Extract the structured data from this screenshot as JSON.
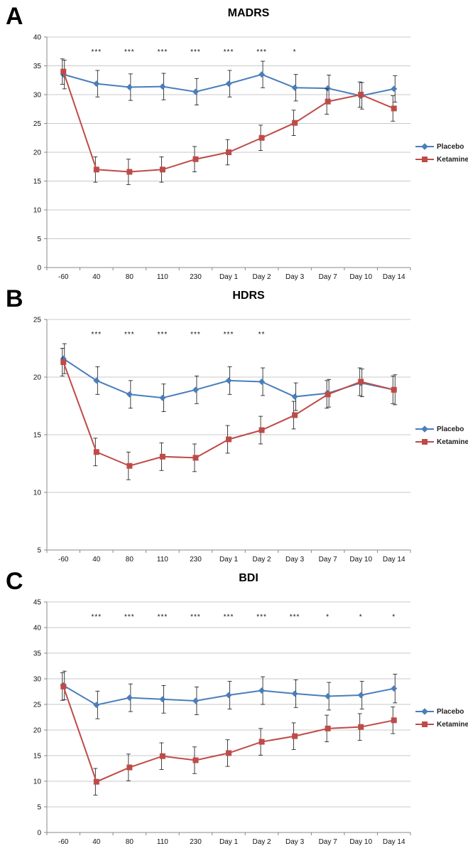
{
  "colors": {
    "placebo": "#4a7ebb",
    "ketamine": "#be4b48",
    "grid": "#c8c8c8",
    "axis": "#888888"
  },
  "chart_data": [
    {
      "panel": "A",
      "type": "line",
      "title": "MADRS",
      "categories": [
        "-60",
        "40",
        "80",
        "110",
        "230",
        "Day 1",
        "Day 2",
        "Day 3",
        "Day 7",
        "Day 10",
        "Day 14"
      ],
      "ylim": [
        0,
        40
      ],
      "yticks": [
        0,
        5,
        10,
        15,
        20,
        25,
        30,
        35,
        40
      ],
      "grid": true,
      "legend": "right",
      "significance": [
        "",
        "***",
        "***",
        "***",
        "***",
        "***",
        "***",
        "*",
        "",
        "",
        ""
      ],
      "series": [
        {
          "name": "Placebo",
          "marker": "diamond",
          "values": [
            33.5,
            31.9,
            31.3,
            31.4,
            30.5,
            31.9,
            33.5,
            31.2,
            31.1,
            29.8,
            31.0
          ],
          "error": [
            2.5,
            2.3,
            2.3,
            2.3,
            2.3,
            2.3,
            2.3,
            2.3,
            2.3,
            2.3,
            2.3
          ]
        },
        {
          "name": "Ketamine",
          "marker": "square",
          "values": [
            34.0,
            17.0,
            16.6,
            17.0,
            18.8,
            20.0,
            22.5,
            25.1,
            28.8,
            30.0,
            27.6
          ],
          "error": [
            2.2,
            2.2,
            2.2,
            2.2,
            2.2,
            2.2,
            2.2,
            2.2,
            2.2,
            2.2,
            2.2
          ]
        }
      ]
    },
    {
      "panel": "B",
      "type": "line",
      "title": "HDRS",
      "categories": [
        "-60",
        "40",
        "80",
        "110",
        "230",
        "Day 1",
        "Day 2",
        "Day 3",
        "Day 7",
        "Day 10",
        "Day 14"
      ],
      "ylim": [
        5,
        25
      ],
      "yticks": [
        5,
        10,
        15,
        20,
        25
      ],
      "grid": true,
      "legend": "right",
      "significance": [
        "",
        "***",
        "***",
        "***",
        "***",
        "***",
        "**",
        "",
        "",
        "",
        ""
      ],
      "series": [
        {
          "name": "Placebo",
          "marker": "diamond",
          "values": [
            21.6,
            19.7,
            18.5,
            18.2,
            18.9,
            19.7,
            19.6,
            18.3,
            18.6,
            19.5,
            18.9
          ],
          "error": [
            1.3,
            1.2,
            1.2,
            1.2,
            1.2,
            1.2,
            1.2,
            1.2,
            1.2,
            1.2,
            1.3
          ]
        },
        {
          "name": "Ketamine",
          "marker": "square",
          "values": [
            21.3,
            13.5,
            12.3,
            13.1,
            13.0,
            14.6,
            15.4,
            16.7,
            18.5,
            19.6,
            18.9
          ],
          "error": [
            1.2,
            1.2,
            1.2,
            1.2,
            1.2,
            1.2,
            1.2,
            1.2,
            1.2,
            1.2,
            1.2
          ]
        }
      ]
    },
    {
      "panel": "C",
      "type": "line",
      "title": "BDI",
      "categories": [
        "-60",
        "40",
        "80",
        "110",
        "230",
        "Day 1",
        "Day 2",
        "Day 3",
        "Day 7",
        "Day 10",
        "Day 14"
      ],
      "ylim": [
        0,
        45
      ],
      "yticks": [
        0,
        5,
        10,
        15,
        20,
        25,
        30,
        35,
        40,
        45
      ],
      "grid": true,
      "legend": "right",
      "significance": [
        "",
        "***",
        "***",
        "***",
        "***",
        "***",
        "***",
        "***",
        "*",
        "*",
        "*"
      ],
      "series": [
        {
          "name": "Placebo",
          "marker": "diamond",
          "values": [
            28.7,
            24.9,
            26.3,
            26.0,
            25.7,
            26.8,
            27.7,
            27.1,
            26.6,
            26.8,
            28.1
          ],
          "error": [
            2.8,
            2.7,
            2.7,
            2.7,
            2.7,
            2.7,
            2.7,
            2.7,
            2.7,
            2.7,
            2.8
          ]
        },
        {
          "name": "Ketamine",
          "marker": "square",
          "values": [
            28.5,
            9.9,
            12.7,
            14.9,
            14.1,
            15.5,
            17.7,
            18.8,
            20.3,
            20.6,
            21.9
          ],
          "error": [
            2.7,
            2.6,
            2.6,
            2.6,
            2.6,
            2.6,
            2.6,
            2.6,
            2.6,
            2.6,
            2.6
          ]
        }
      ]
    }
  ]
}
